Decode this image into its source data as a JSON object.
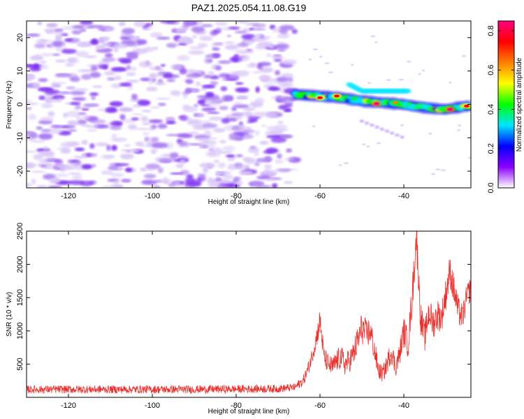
{
  "title": "PAZ1.2025.054.11.08.G19",
  "colors": {
    "blob_light": "#d9c7f7",
    "blob_mid": "#a97cf0",
    "blob_dark": "#7b2ff0",
    "snr_line": "#e8322e",
    "colorbar_stops": [
      "#ffffff",
      "#8b00ff",
      "#0000ff",
      "#00e5ff",
      "#00ff00",
      "#ffff00",
      "#ff8000",
      "#ff0000",
      "#ff0080"
    ]
  },
  "chart_data": [
    {
      "type": "heatmap",
      "title": "PAZ1.2025.054.11.08.G19",
      "xlabel": "Height of straight line (km)",
      "ylabel": "Frequency (Hz)",
      "xlim": [
        -130,
        -24
      ],
      "ylim": [
        -25,
        25
      ],
      "xticks": [
        -120,
        -100,
        -80,
        -60,
        -40
      ],
      "yticks": [
        -20,
        -10,
        0,
        10,
        20
      ],
      "colorbar": {
        "label": "Normalized spectral amplitude",
        "range": [
          0,
          0.85
        ],
        "ticks": [
          "0.0",
          "0.2",
          "0.4",
          "0.6",
          "0.8"
        ],
        "tick_values": [
          0,
          0.2,
          0.4,
          0.6,
          0.8
        ]
      },
      "regions": [
        {
          "name": "noise",
          "x_range": [
            -130,
            -66
          ],
          "freq_range": [
            -25,
            25
          ],
          "amplitude_range": [
            0.02,
            0.12
          ]
        },
        {
          "name": "signal_band",
          "x_range": [
            -66,
            -24
          ],
          "center_freq": [
            [
              -66,
              3
            ],
            [
              -60,
              2.5
            ],
            [
              -55,
              2
            ],
            [
              -50,
              1
            ],
            [
              -45,
              0.5
            ],
            [
              -40,
              0
            ],
            [
              -35,
              -1
            ],
            [
              -30,
              -1.5
            ],
            [
              -25,
              -0.5
            ]
          ],
          "peak_amplitude": 0.85
        },
        {
          "name": "secondary_branch",
          "x_range": [
            -53,
            -39
          ],
          "center_freq": [
            [
              -53,
              6
            ],
            [
              -50,
              4
            ]
          ],
          "amplitude": 0.3
        },
        {
          "name": "lower_tail",
          "x_range": [
            -50,
            -40
          ],
          "center_freq": [
            [
              -50,
              -5
            ],
            [
              -44,
              -8
            ],
            [
              -40,
              -10
            ]
          ],
          "amplitude": 0.1
        }
      ],
      "peaks": [
        {
          "x": -60,
          "y": 2,
          "value": 0.7
        },
        {
          "x": -56,
          "y": 2.5,
          "value": 0.75
        },
        {
          "x": -46.5,
          "y": 0.2,
          "value": 0.85
        },
        {
          "x": -42,
          "y": 0.5,
          "value": 0.6
        },
        {
          "x": -29,
          "y": -1.5,
          "value": 0.85
        },
        {
          "x": -25,
          "y": -0.5,
          "value": 0.7
        }
      ],
      "grid": false
    },
    {
      "type": "line",
      "xlabel": "Height of straight line (km)",
      "ylabel": "SNR (10 * v/v)",
      "xlim": [
        -130,
        -24
      ],
      "ylim": [
        0,
        2500
      ],
      "xticks": [
        -120,
        -100,
        -80,
        -60,
        -40
      ],
      "yticks": [
        500,
        1000,
        1500,
        2000,
        2500
      ],
      "series": [
        {
          "x": [
            -130,
            -110,
            -90,
            -70,
            -66,
            -64,
            -63,
            -62,
            -61,
            -60,
            -59,
            -58,
            -57,
            -56,
            -55,
            -54,
            -53,
            -52,
            -51,
            -50,
            -49,
            -48,
            -47,
            -46,
            -45,
            -44,
            -43,
            -42,
            -41,
            -40,
            -39,
            -38,
            -37,
            -36,
            -35,
            -34,
            -33,
            -32,
            -31,
            -30,
            -29,
            -28,
            -27,
            -26,
            -25,
            -24
          ],
          "values": [
            120,
            120,
            120,
            130,
            150,
            250,
            400,
            600,
            850,
            1150,
            600,
            500,
            450,
            550,
            600,
            500,
            550,
            650,
            850,
            1050,
            950,
            1000,
            700,
            400,
            350,
            500,
            700,
            450,
            650,
            1000,
            800,
            1500,
            2450,
            1200,
            900,
            1300,
            1100,
            1250,
            1200,
            1550,
            1900,
            1600,
            1300,
            1200,
            1500,
            1650
          ],
          "noise_amplitude": [
            60,
            60,
            60,
            60,
            60,
            80,
            100,
            120,
            150,
            200,
            150,
            150,
            160,
            170,
            180,
            180,
            180,
            200,
            230,
            250,
            220,
            230,
            200,
            130,
            130,
            150,
            180,
            150,
            180,
            220,
            220,
            280,
            300,
            260,
            220,
            250,
            230,
            250,
            230,
            250,
            250,
            250,
            220,
            200,
            200,
            200
          ]
        }
      ],
      "grid": false
    }
  ]
}
